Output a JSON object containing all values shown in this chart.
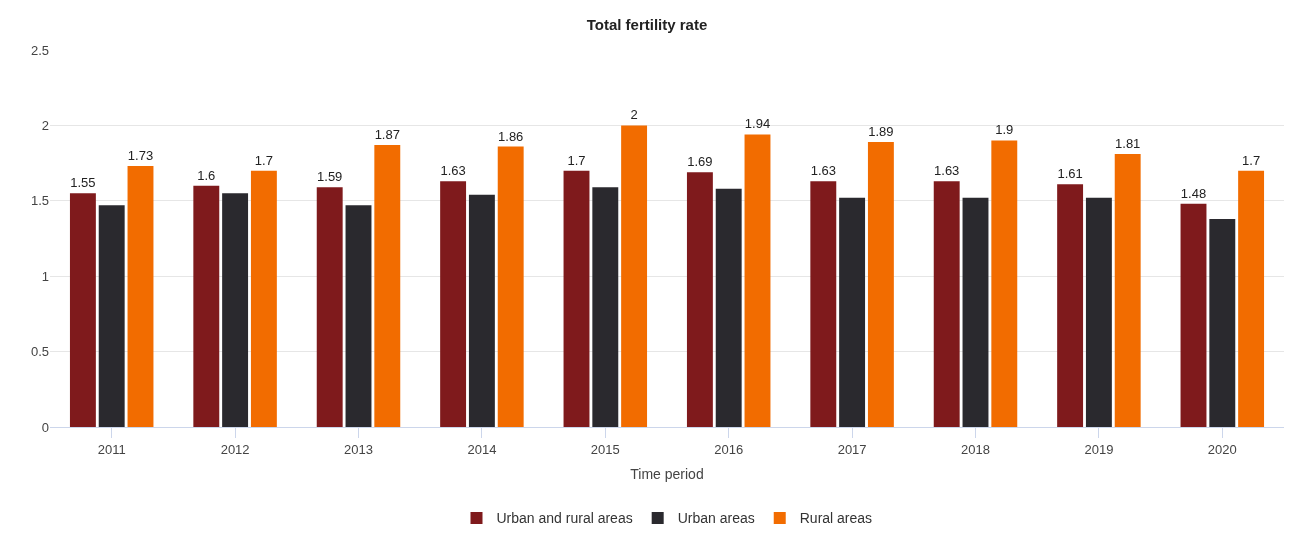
{
  "chart_data": {
    "type": "bar",
    "title": "Total fertility rate",
    "xlabel": "Time period",
    "categories": [
      "2011",
      "2012",
      "2013",
      "2014",
      "2015",
      "2016",
      "2017",
      "2018",
      "2019",
      "2020"
    ],
    "series": [
      {
        "name": "Urban and rural areas",
        "color": "#7f1a1c",
        "values": [
          1.55,
          1.6,
          1.59,
          1.63,
          1.7,
          1.69,
          1.63,
          1.63,
          1.61,
          1.48
        ],
        "value_labels": [
          "1.55",
          "1.6",
          "1.59",
          "1.63",
          "1.7",
          "1.69",
          "1.63",
          "1.63",
          "1.61",
          "1.48"
        ]
      },
      {
        "name": "Urban areas",
        "color": "#2a292e",
        "values": [
          1.47,
          1.55,
          1.47,
          1.54,
          1.59,
          1.58,
          1.52,
          1.52,
          1.52,
          1.38
        ]
      },
      {
        "name": "Rural areas",
        "color": "#f26c00",
        "values": [
          1.73,
          1.7,
          1.87,
          1.86,
          2,
          1.94,
          1.89,
          1.9,
          1.81,
          1.7
        ],
        "value_labels": [
          "1.73",
          "1.7",
          "1.87",
          "1.86",
          "2",
          "1.94",
          "1.89",
          "1.9",
          "1.81",
          "1.7"
        ]
      }
    ],
    "ylim": [
      0,
      2.5
    ],
    "yticks": [
      0,
      0.5,
      1,
      1.5,
      2,
      2.5
    ],
    "grid": "y",
    "legend": "bottom"
  }
}
